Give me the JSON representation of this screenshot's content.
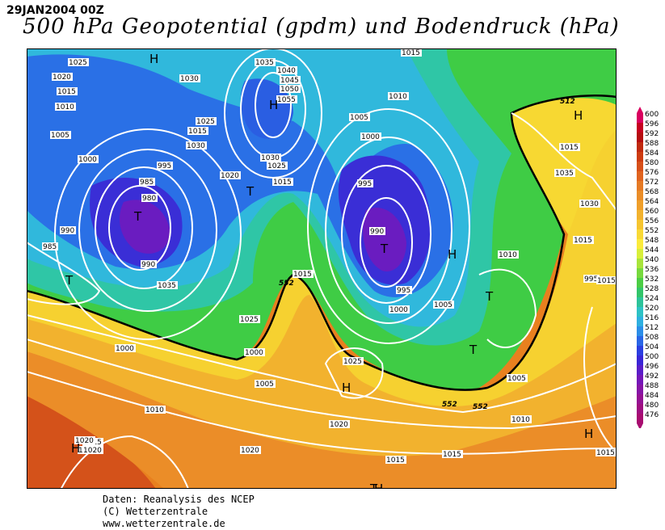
{
  "header": {
    "date": "29JAN2004 00Z",
    "title": "500 hPa Geopotential (gpdm) und Bodendruck (hPa)"
  },
  "legend": {
    "unit_note": "gpdm",
    "levels": [
      "600",
      "596",
      "592",
      "588",
      "584",
      "580",
      "576",
      "572",
      "568",
      "564",
      "560",
      "556",
      "552",
      "548",
      "544",
      "540",
      "536",
      "532",
      "528",
      "524",
      "520",
      "516",
      "512",
      "508",
      "504",
      "500",
      "496",
      "492",
      "488",
      "484",
      "480",
      "476"
    ],
    "colors": [
      "#d9005f",
      "#c50020",
      "#b50d10",
      "#c02a10",
      "#cd3c12",
      "#d7501a",
      "#e06420",
      "#e57a25",
      "#ea8d28",
      "#ef9f2a",
      "#f2b22e",
      "#f6c530",
      "#f9d936",
      "#fbeb3c",
      "#d8ef3a",
      "#a8e43b",
      "#77d93e",
      "#4ccd45",
      "#33c56a",
      "#2dc39a",
      "#2ec2c5",
      "#2fb0e0",
      "#2c8ee8",
      "#2a66e6",
      "#2c3fe0",
      "#3a26d6",
      "#5a1ec8",
      "#7418b8",
      "#8616a6",
      "#951293",
      "#9f0f80",
      "#a80c70"
    ]
  },
  "map": {
    "pressure_labels": [
      "1025",
      "1020",
      "1015",
      "1010",
      "1005",
      "1000",
      "995",
      "985",
      "980",
      "990",
      "985",
      "990",
      "1035",
      "1030",
      "1025",
      "1015",
      "1030",
      "1035",
      "1040",
      "1045",
      "1050",
      "1055",
      "1030",
      "1025",
      "1020",
      "1015",
      "1015",
      "1010",
      "1005",
      "1000",
      "995",
      "990",
      "995",
      "1000",
      "1005",
      "1010",
      "1015",
      "1015",
      "1015",
      "1035",
      "1030",
      "1025",
      "1000",
      "1025",
      "1005",
      "1010",
      "1015",
      "1020",
      "1020",
      "1020",
      "1015",
      "1015",
      "1015",
      "1010",
      "1005",
      "1000",
      "995",
      "1015",
      "1020",
      "1020"
    ],
    "pressure_centers": [
      "H",
      "H",
      "H",
      "H",
      "H",
      "H",
      "H",
      "H",
      "T",
      "T",
      "T",
      "T",
      "T",
      "T",
      "T"
    ],
    "contour_labels_500": [
      "512",
      "552",
      "552",
      "552"
    ]
  },
  "credits": {
    "line1": "Daten: Reanalysis des NCEP",
    "line2": "(C) Wetterzentrale",
    "line3": "www.wetterzentrale.de"
  }
}
